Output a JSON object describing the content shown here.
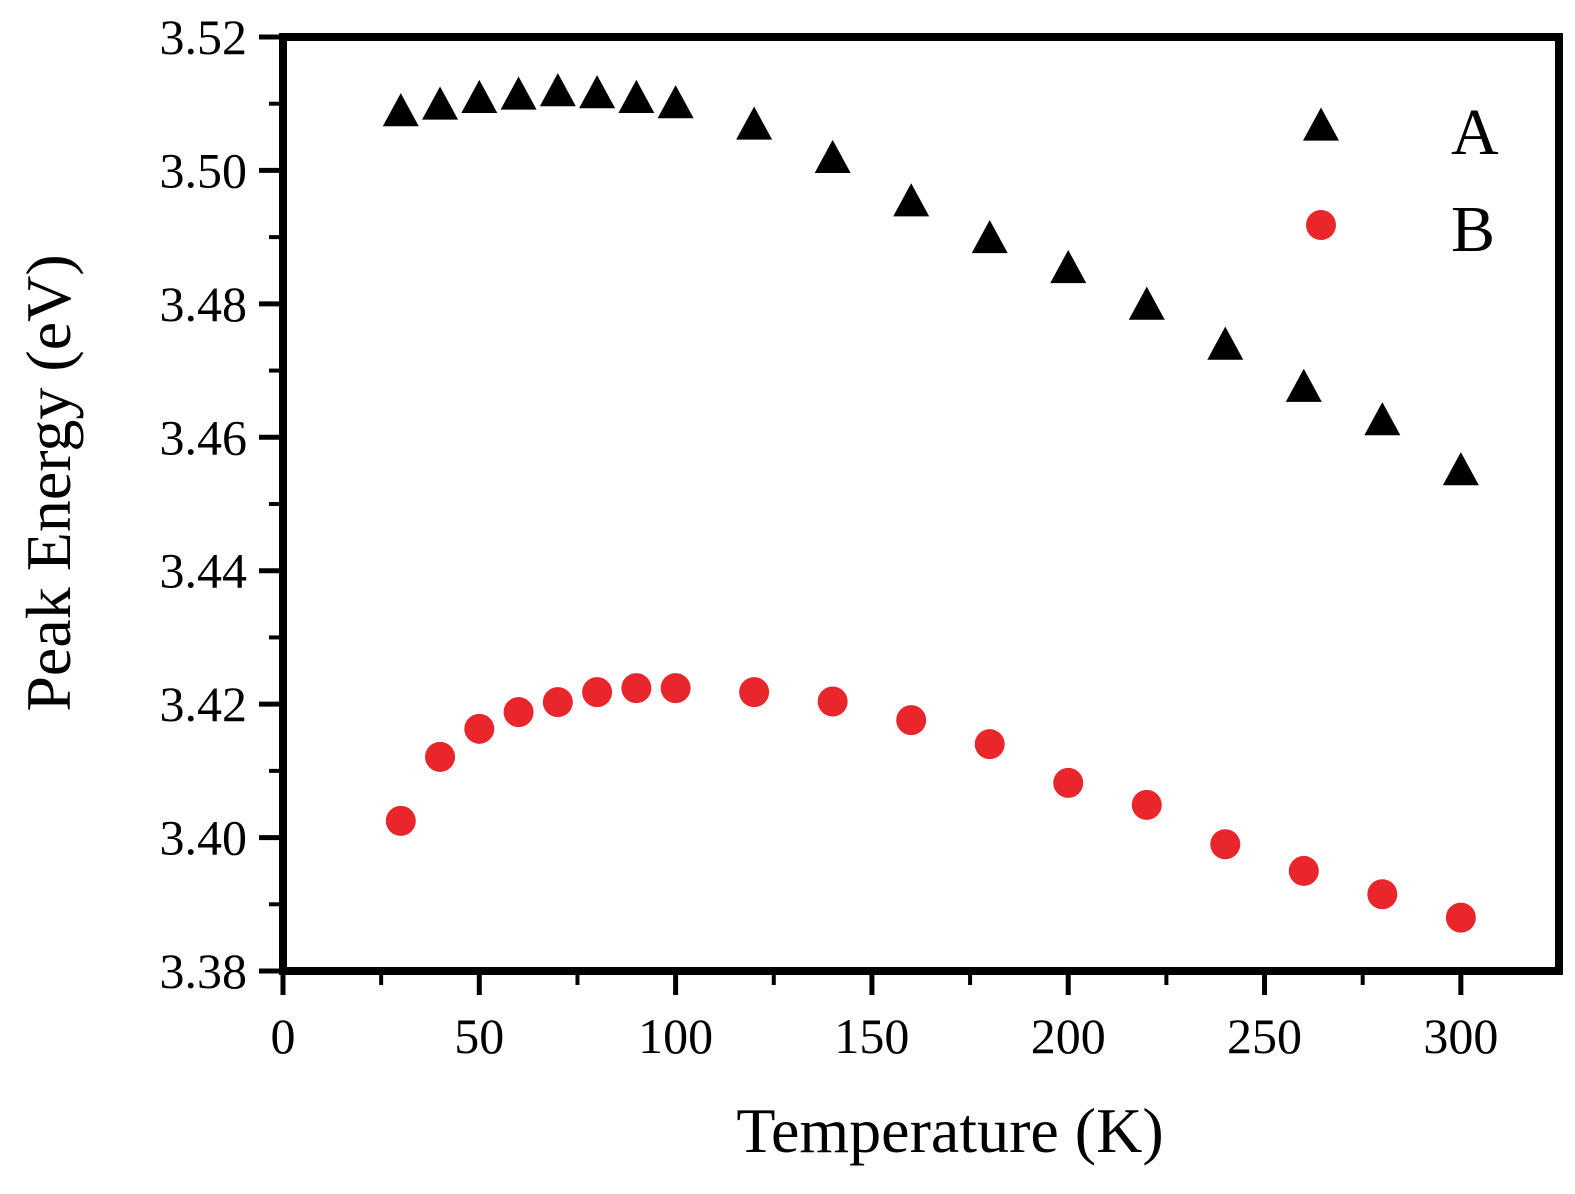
{
  "chart_data": {
    "type": "scatter",
    "xlabel": "Temperature (K)",
    "ylabel": "Peak Energy (eV)",
    "xlim": [
      0,
      325
    ],
    "ylim": [
      3.38,
      3.52
    ],
    "xticks": [
      0,
      50,
      100,
      150,
      200,
      250,
      300
    ],
    "xtick_labels": [
      "0",
      "50",
      "100",
      "150",
      "200",
      "250",
      "300"
    ],
    "yticks": [
      3.38,
      3.4,
      3.42,
      3.44,
      3.46,
      3.48,
      3.5,
      3.52
    ],
    "ytick_labels": [
      "3.38",
      "3.40",
      "3.42",
      "3.44",
      "3.46",
      "3.48",
      "3.50",
      "3.52"
    ],
    "grid": false,
    "legend_position": "top-right",
    "series": [
      {
        "name": "A",
        "marker": "triangle",
        "color": "#000000",
        "points": [
          [
            30,
            3.5085
          ],
          [
            40,
            3.5095
          ],
          [
            50,
            3.5105
          ],
          [
            60,
            3.511
          ],
          [
            70,
            3.5115
          ],
          [
            80,
            3.5112
          ],
          [
            90,
            3.5105
          ],
          [
            100,
            3.5097
          ],
          [
            120,
            3.5065
          ],
          [
            140,
            3.5015
          ],
          [
            160,
            3.495
          ],
          [
            180,
            3.4895
          ],
          [
            200,
            3.485
          ],
          [
            220,
            3.4795
          ],
          [
            240,
            3.4735
          ],
          [
            260,
            3.4672
          ],
          [
            280,
            3.4622
          ],
          [
            300,
            3.4547
          ]
        ]
      },
      {
        "name": "B",
        "marker": "circle",
        "color": "#e8262b",
        "points": [
          [
            30,
            3.4025
          ],
          [
            40,
            3.4121
          ],
          [
            50,
            3.4163
          ],
          [
            60,
            3.4188
          ],
          [
            70,
            3.4203
          ],
          [
            80,
            3.4218
          ],
          [
            90,
            3.4224
          ],
          [
            100,
            3.4224
          ],
          [
            120,
            3.4218
          ],
          [
            140,
            3.4204
          ],
          [
            160,
            3.4176
          ],
          [
            180,
            3.414
          ],
          [
            200,
            3.4082
          ],
          [
            220,
            3.4049
          ],
          [
            240,
            3.399
          ],
          [
            260,
            3.395
          ],
          [
            280,
            3.3915
          ],
          [
            300,
            3.388
          ]
        ]
      }
    ]
  }
}
